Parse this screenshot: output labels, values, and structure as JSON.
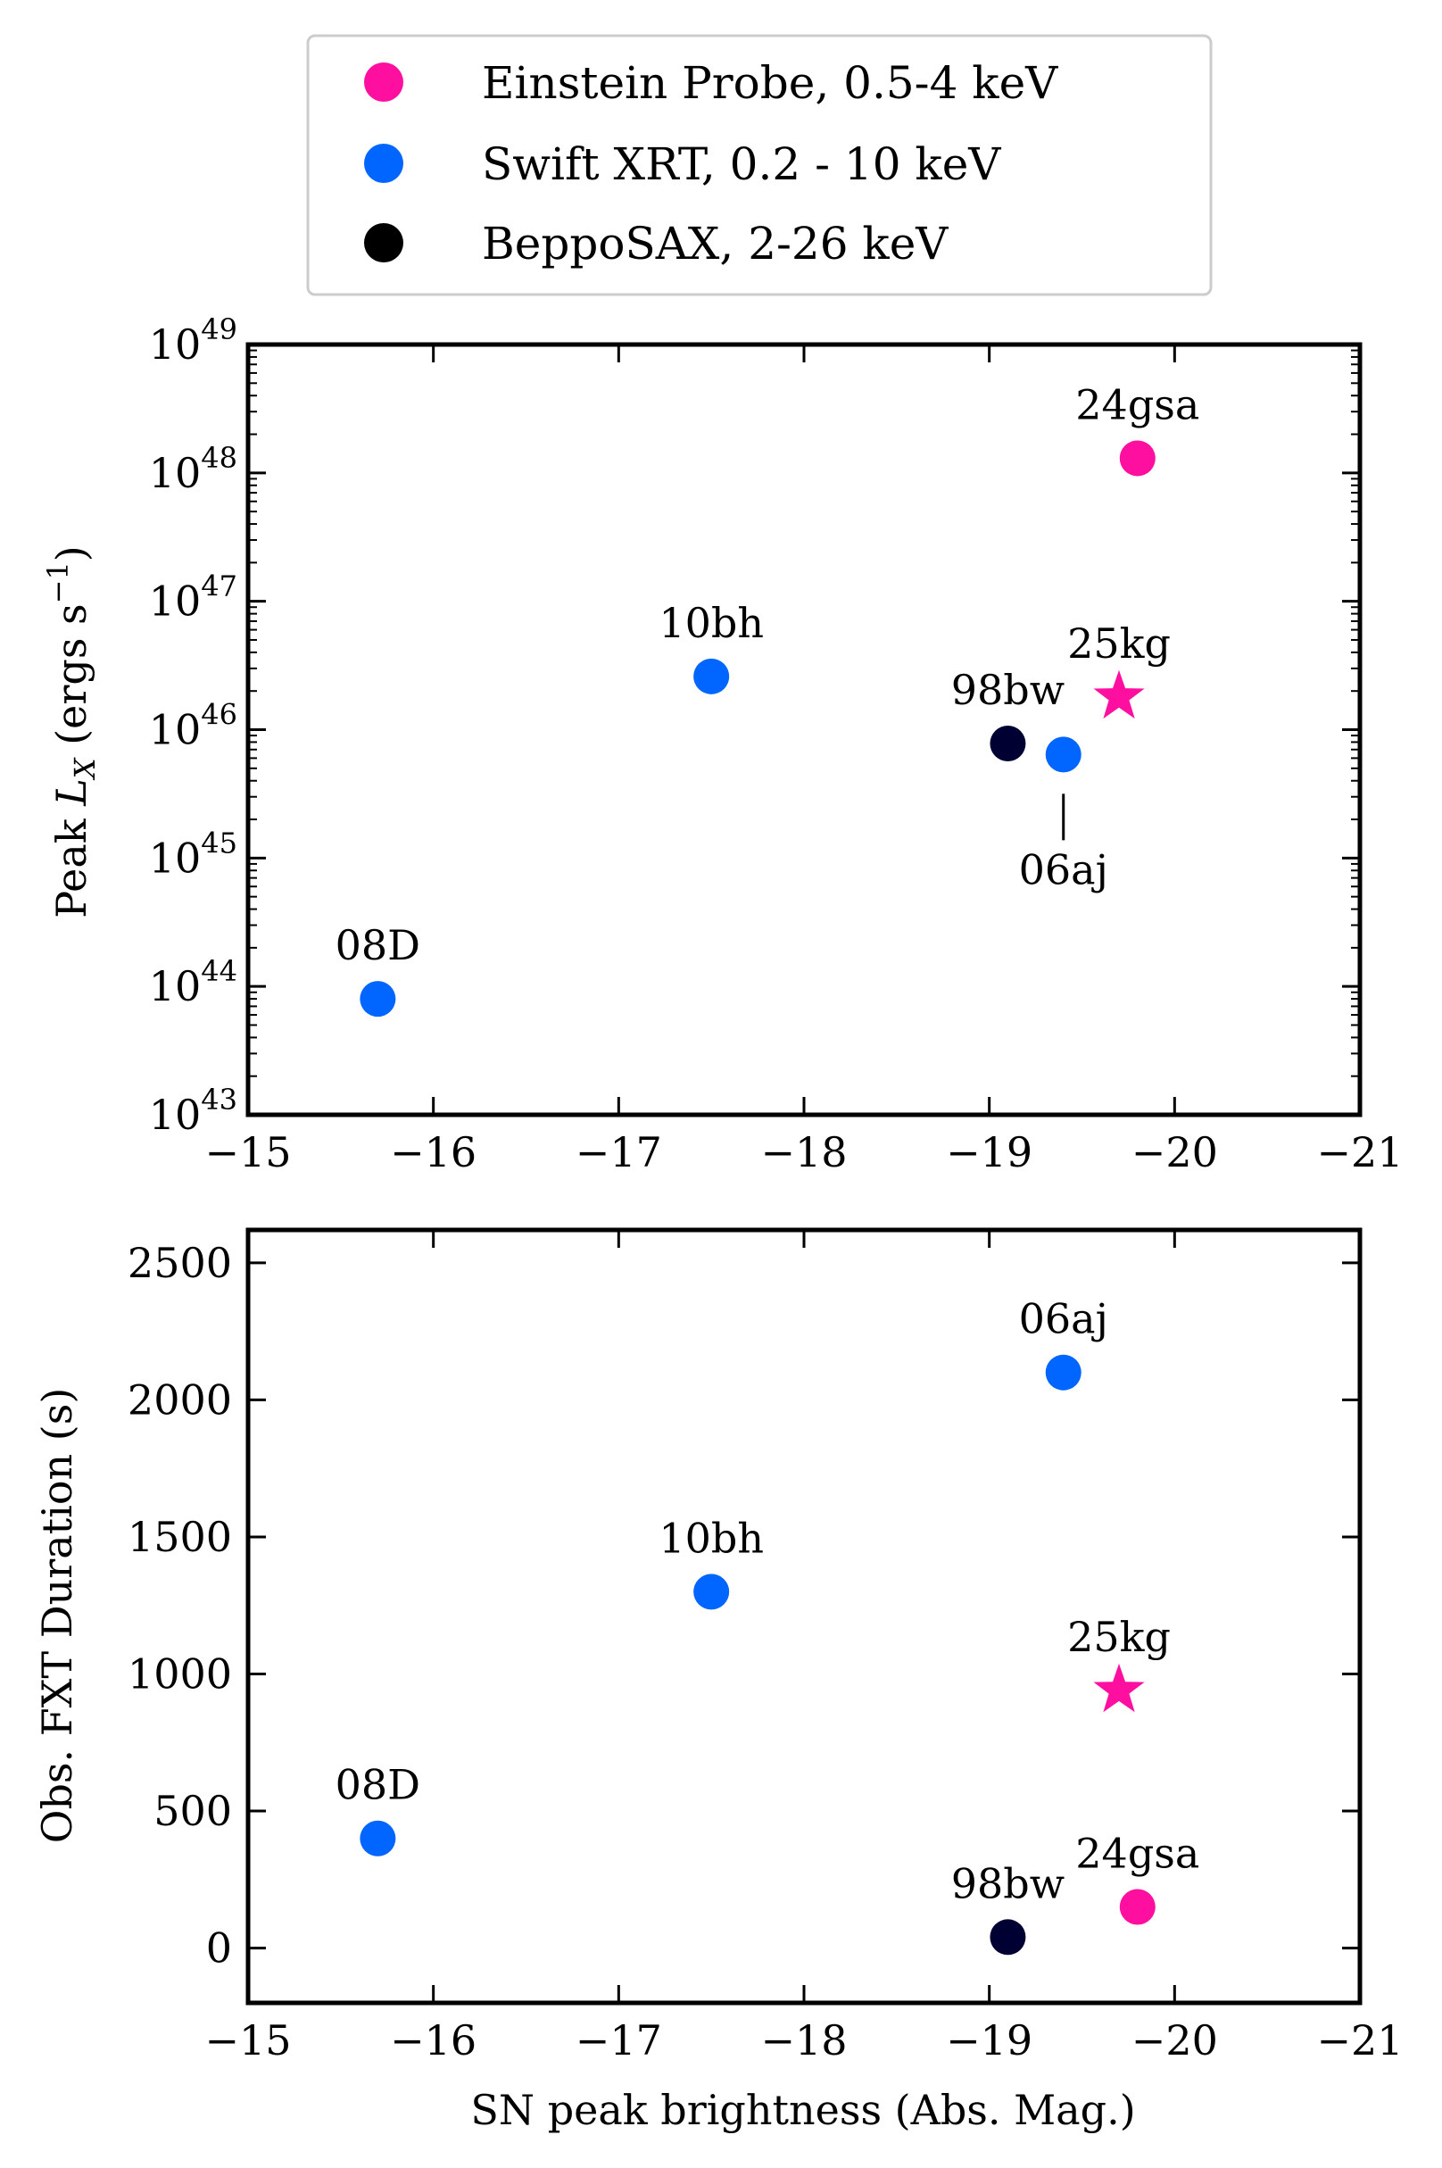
{
  "legend": {
    "entries": [
      {
        "label": "Einstein Probe, 0.5-4 keV",
        "color": "#ff0fa0"
      },
      {
        "label": "Swift XRT, 0.2 - 10 keV",
        "color": "#0066ff"
      },
      {
        "label": "BeppoSAX, 2-26 keV",
        "color": "#000000"
      }
    ]
  },
  "xlabel": "SN peak brightness (Abs. Mag.)",
  "chart_data": [
    {
      "type": "scatter",
      "title": "",
      "xlabel": "",
      "ylabel": "Peak L_X (ergs s^-1)",
      "yscale": "log",
      "xlim": [
        -15,
        -21
      ],
      "ylim": [
        1e+43,
        1e+49
      ],
      "x_ticks": [
        "−15",
        "−16",
        "−17",
        "−18",
        "−19",
        "−20",
        "−21"
      ],
      "y_ticks": [
        {
          "base": "10",
          "exp": "43"
        },
        {
          "base": "10",
          "exp": "44"
        },
        {
          "base": "10",
          "exp": "45"
        },
        {
          "base": "10",
          "exp": "46"
        },
        {
          "base": "10",
          "exp": "47"
        },
        {
          "base": "10",
          "exp": "48"
        },
        {
          "base": "10",
          "exp": "49"
        }
      ],
      "points": [
        {
          "name": "08D",
          "x": -15.7,
          "y": 8e+43,
          "color": "#0066ff",
          "marker": "circle",
          "label_pos": "above"
        },
        {
          "name": "10bh",
          "x": -17.5,
          "y": 2.6e+46,
          "color": "#0066ff",
          "marker": "circle",
          "label_pos": "above"
        },
        {
          "name": "98bw",
          "x": -19.1,
          "y": 7.8e+45,
          "color": "#000033",
          "marker": "circle",
          "label_pos": "above"
        },
        {
          "name": "06aj",
          "x": -19.4,
          "y": 6.4e+45,
          "color": "#0066ff",
          "marker": "circle",
          "label_pos": "below-line"
        },
        {
          "name": "25kg",
          "x": -19.7,
          "y": 1.8e+46,
          "color": "#ff0fa0",
          "marker": "star",
          "label_pos": "above"
        },
        {
          "name": "24gsa",
          "x": -19.8,
          "y": 1.3e+48,
          "color": "#ff0fa0",
          "marker": "circle",
          "label_pos": "above"
        }
      ]
    },
    {
      "type": "scatter",
      "title": "",
      "xlabel": "SN peak brightness (Abs. Mag.)",
      "ylabel": "Obs. FXT Duration (s)",
      "yscale": "linear",
      "xlim": [
        -15,
        -21
      ],
      "ylim": [
        -200,
        2620
      ],
      "x_ticks": [
        "−15",
        "−16",
        "−17",
        "−18",
        "−19",
        "−20",
        "−21"
      ],
      "y_ticks": [
        "0",
        "500",
        "1000",
        "1500",
        "2000",
        "2500"
      ],
      "points": [
        {
          "name": "08D",
          "x": -15.7,
          "y": 400,
          "color": "#0066ff",
          "marker": "circle",
          "label_pos": "above"
        },
        {
          "name": "10bh",
          "x": -17.5,
          "y": 1300,
          "color": "#0066ff",
          "marker": "circle",
          "label_pos": "above"
        },
        {
          "name": "06aj",
          "x": -19.4,
          "y": 2100,
          "color": "#0066ff",
          "marker": "circle",
          "label_pos": "above"
        },
        {
          "name": "25kg",
          "x": -19.7,
          "y": 940,
          "color": "#ff0fa0",
          "marker": "star",
          "label_pos": "above"
        },
        {
          "name": "24gsa",
          "x": -19.8,
          "y": 150,
          "color": "#ff0fa0",
          "marker": "circle",
          "label_pos": "above"
        },
        {
          "name": "98bw",
          "x": -19.1,
          "y": 40,
          "color": "#000033",
          "marker": "circle",
          "label_pos": "above"
        }
      ]
    }
  ]
}
